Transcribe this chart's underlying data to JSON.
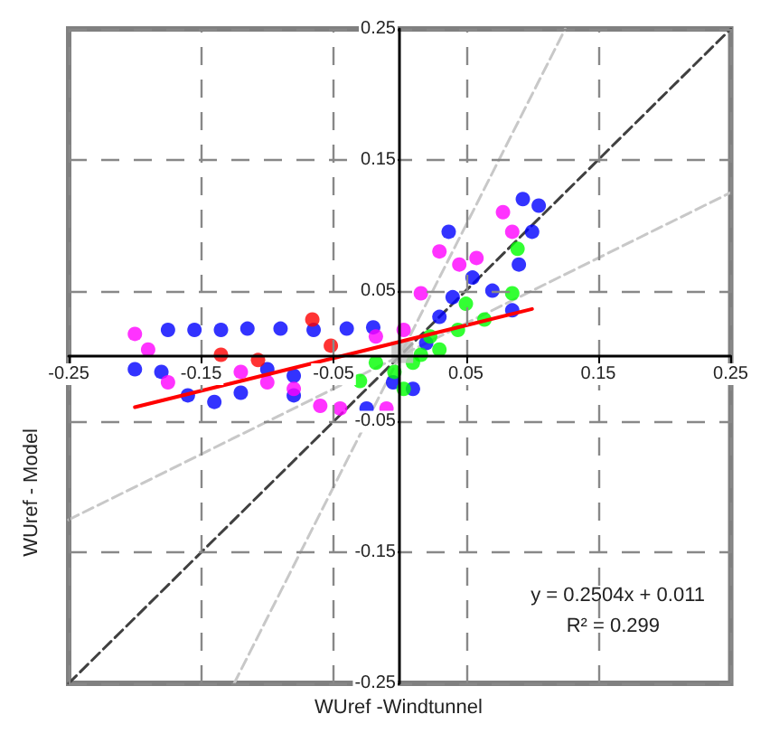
{
  "chart_data": {
    "type": "scatter",
    "xlabel": "WUref -Windtunnel",
    "ylabel": "WUref - Model",
    "xlim": [
      -0.25,
      0.25
    ],
    "ylim": [
      -0.25,
      0.25
    ],
    "xticks": [
      -0.25,
      -0.15,
      -0.05,
      0.05,
      0.15,
      0.25
    ],
    "yticks": [
      -0.25,
      -0.15,
      -0.05,
      0.05,
      0.15,
      0.25
    ],
    "grid": true,
    "marker": "circle",
    "annotations": [
      "y = 0.2504x + 0.011",
      "R² = 0.299"
    ],
    "series": [
      {
        "type": "line",
        "color": "#c8c8c8",
        "line_style": "dashed",
        "marker": "none",
        "x": [
          -0.125,
          0.125
        ],
        "values": [
          -0.25,
          0.25
        ]
      },
      {
        "type": "line",
        "color": "#c8c8c8",
        "line_style": "dashed",
        "marker": "none",
        "x": [
          -0.25,
          0.25
        ],
        "values": [
          -0.125,
          0.125
        ]
      },
      {
        "type": "line",
        "color": "#404040",
        "line_style": "dashed",
        "marker": "none",
        "x": [
          -0.25,
          0.25
        ],
        "values": [
          -0.25,
          0.25
        ]
      },
      {
        "color": "#0000ff",
        "x": [
          -0.175,
          -0.155,
          -0.135,
          -0.115,
          -0.09,
          -0.065,
          -0.04,
          -0.02,
          -0.2,
          -0.18,
          -0.14,
          -0.1,
          -0.08,
          -0.16,
          -0.12,
          -0.08,
          0.037,
          0.055,
          0.07,
          0.085,
          0.093,
          0.105,
          0.1,
          0.03,
          0.01,
          -0.025,
          -0.005,
          0.02,
          0.04,
          0.09
        ],
        "values": [
          0.02,
          0.02,
          0.02,
          0.021,
          0.021,
          0.02,
          0.021,
          0.022,
          -0.01,
          -0.012,
          -0.035,
          -0.01,
          -0.015,
          -0.03,
          -0.028,
          -0.03,
          0.095,
          0.06,
          0.05,
          0.035,
          0.12,
          0.115,
          0.095,
          0.03,
          -0.025,
          -0.04,
          -0.02,
          0.01,
          0.045,
          0.07
        ]
      },
      {
        "color": "#ff00ff",
        "x": [
          -0.2,
          -0.19,
          -0.175,
          -0.12,
          -0.08,
          -0.045,
          -0.06,
          -0.01,
          0.016,
          0.03,
          0.058,
          0.078,
          0.085,
          -0.018,
          0.003,
          -0.1,
          0.045
        ],
        "values": [
          0.017,
          0.005,
          -0.02,
          -0.012,
          -0.025,
          -0.04,
          -0.038,
          -0.04,
          0.048,
          0.08,
          0.075,
          0.11,
          0.095,
          0.015,
          0.02,
          -0.02,
          0.07
        ]
      },
      {
        "color": "#00ff00",
        "x": [
          -0.018,
          -0.004,
          0.016,
          0.023,
          0.044,
          0.064,
          0.085,
          0.089,
          0.05,
          0.003,
          -0.03,
          0.01,
          0.03
        ],
        "values": [
          -0.005,
          -0.012,
          0.001,
          0.015,
          0.02,
          0.028,
          0.048,
          0.082,
          0.04,
          -0.025,
          -0.019,
          -0.005,
          0.005
        ]
      },
      {
        "color": "#ff0000",
        "x": [
          -0.066,
          -0.052,
          -0.135,
          -0.107
        ],
        "values": [
          0.028,
          0.008,
          0.001,
          -0.003
        ]
      },
      {
        "color": "#c0c0c0",
        "marker": "square",
        "x": [
          0.002
        ],
        "values": [
          0.003
        ]
      },
      {
        "type": "line",
        "color": "#ff0000",
        "line_style": "solid",
        "marker": "none",
        "x": [
          -0.2,
          0.1
        ],
        "values": [
          -0.039,
          0.036
        ]
      }
    ]
  }
}
